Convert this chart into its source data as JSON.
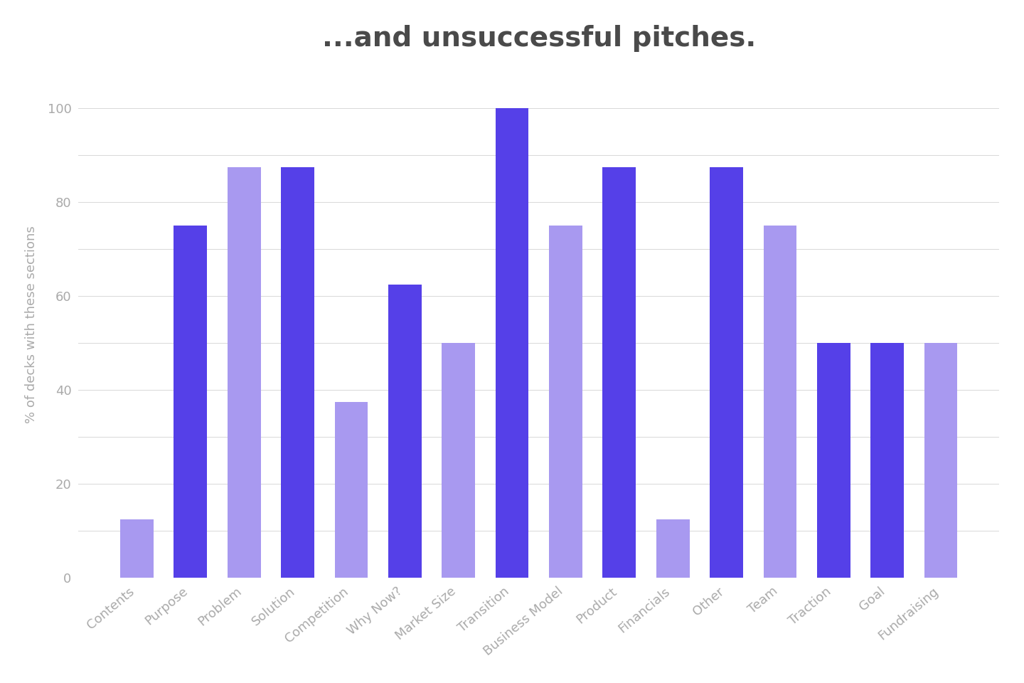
{
  "categories": [
    "Contents",
    "Purpose",
    "Problem",
    "Solution",
    "Competition",
    "Why Now?",
    "Market Size",
    "Transition",
    "Business Model",
    "Product",
    "Financials",
    "Other",
    "Team",
    "Traction",
    "Goal",
    "Fundraising"
  ],
  "values": [
    12.5,
    75,
    87.5,
    87.5,
    37.5,
    62.5,
    50,
    100,
    75,
    87.5,
    12.5,
    87.5,
    75,
    50,
    50,
    50
  ],
  "colors": [
    "#a899f0",
    "#5540e8",
    "#a899f0",
    "#5540e8",
    "#a899f0",
    "#5540e8",
    "#a899f0",
    "#5540e8",
    "#a899f0",
    "#5540e8",
    "#a899f0",
    "#5540e8",
    "#a899f0",
    "#5540e8",
    "#5540e8",
    "#a899f0"
  ],
  "title": "...and unsuccessful pitches.",
  "ylabel": "% of decks with these sections",
  "ylim": [
    0,
    108
  ],
  "yticks": [
    0,
    20,
    40,
    60,
    80,
    100
  ],
  "ytick_minor": [
    10,
    30,
    50,
    70,
    90
  ],
  "title_fontsize": 28,
  "title_color": "#4a4a4a",
  "ylabel_fontsize": 13,
  "ylabel_color": "#aaaaaa",
  "tick_label_color": "#aaaaaa",
  "tick_fontsize": 13,
  "bar_width": 0.62,
  "background_color": "#ffffff",
  "grid_color": "#d8d8d8",
  "grid_linewidth": 0.7
}
